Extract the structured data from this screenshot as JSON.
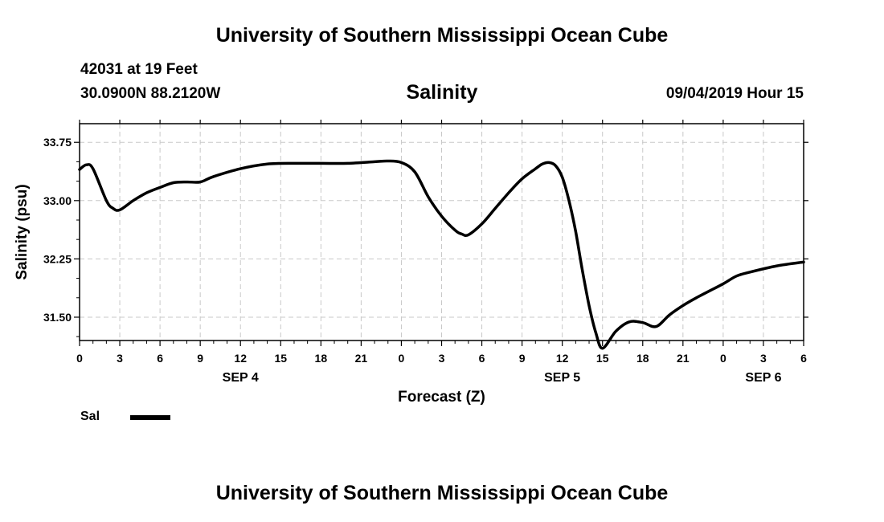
{
  "header": {
    "title": "University of Southern Mississippi Ocean Cube",
    "station": "42031 at 19 Feet",
    "coords": "30.0900N 88.2120W",
    "variable": "Salinity",
    "datetime": "09/04/2019 Hour 15"
  },
  "footer": {
    "title": "University of Southern Mississippi Ocean Cube"
  },
  "legend": {
    "label": "Sal"
  },
  "colors": {
    "line": "#000000",
    "grid": "#c8c8c8",
    "background": "#ffffff"
  },
  "chart_data": {
    "type": "line",
    "title": "Salinity",
    "xlabel": "Forecast (Z)",
    "ylabel": "Salinity (psu)",
    "xlim": [
      0,
      54
    ],
    "ylim": [
      31.2,
      33.99
    ],
    "grid": true,
    "legend_position": "bottom-left",
    "x_ticks": [
      0,
      3,
      6,
      9,
      12,
      15,
      18,
      21,
      24,
      27,
      30,
      33,
      36,
      39,
      42,
      45,
      48,
      51,
      54
    ],
    "x_tick_labels": [
      "0",
      "3",
      "6",
      "9",
      "12",
      "15",
      "18",
      "21",
      "0",
      "3",
      "6",
      "9",
      "12",
      "15",
      "18",
      "21",
      "0",
      "3",
      "6"
    ],
    "date_labels": [
      {
        "x": 12,
        "label": "SEP 4"
      },
      {
        "x": 36,
        "label": "SEP 5"
      },
      {
        "x": 51,
        "label": "SEP 6"
      }
    ],
    "y_ticks": [
      31.5,
      32.25,
      33.0,
      33.75
    ],
    "y_tick_labels": [
      "31.50",
      "32.25",
      "33.00",
      "33.75"
    ],
    "series": [
      {
        "name": "Sal",
        "x": [
          0,
          0.5,
          1,
          2,
          2.5,
          3,
          4,
          5,
          6,
          7,
          8,
          9,
          10,
          12,
          14,
          16,
          18,
          20,
          22,
          23,
          24,
          25,
          26,
          27,
          28,
          28.5,
          29,
          30,
          31,
          32,
          33,
          34,
          34.5,
          35,
          35.5,
          36,
          36.5,
          37,
          37.5,
          38,
          38.5,
          39,
          40,
          41,
          42,
          43,
          44,
          45,
          46,
          48,
          49,
          50,
          52,
          54
        ],
        "values": [
          33.4,
          33.46,
          33.41,
          33.0,
          32.9,
          32.88,
          33.0,
          33.1,
          33.17,
          33.23,
          33.24,
          33.24,
          33.31,
          33.41,
          33.47,
          33.48,
          33.48,
          33.48,
          33.5,
          33.51,
          33.49,
          33.37,
          33.05,
          32.8,
          32.62,
          32.57,
          32.56,
          32.7,
          32.9,
          33.1,
          33.28,
          33.41,
          33.47,
          33.49,
          33.45,
          33.3,
          33.0,
          32.6,
          32.1,
          31.65,
          31.3,
          31.1,
          31.32,
          31.44,
          31.43,
          31.38,
          31.53,
          31.65,
          31.75,
          31.93,
          32.03,
          32.08,
          32.16,
          32.21
        ]
      }
    ]
  }
}
